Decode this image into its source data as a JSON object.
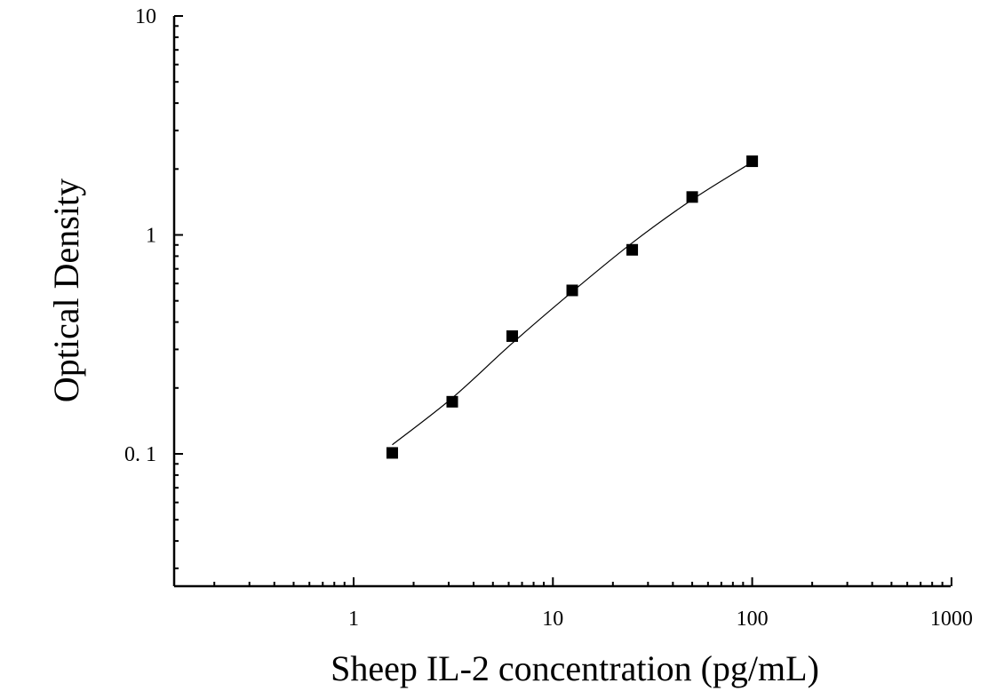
{
  "chart_data": {
    "type": "scatter",
    "title": "",
    "xlabel": "Sheep IL-2 concentration (pg/mL)",
    "ylabel": "Optical Density",
    "x_scale": "log",
    "y_scale": "log",
    "xlim": [
      0.13,
      1000
    ],
    "ylim": [
      0.025,
      10
    ],
    "x_ticks": [
      {
        "value": 1,
        "label": "1"
      },
      {
        "value": 10,
        "label": "10"
      },
      {
        "value": 100,
        "label": "100"
      },
      {
        "value": 1000,
        "label": "1000"
      }
    ],
    "y_ticks": [
      {
        "value": 0.1,
        "label": "0. 1"
      },
      {
        "value": 1,
        "label": "1"
      },
      {
        "value": 10,
        "label": "10"
      }
    ],
    "grid": false,
    "series": [
      {
        "marker": "square",
        "color": "#000000",
        "x": [
          1.5625,
          3.125,
          6.25,
          12.5,
          25,
          50,
          100
        ],
        "y": [
          0.101,
          0.173,
          0.345,
          0.558,
          0.855,
          1.49,
          2.17
        ]
      }
    ],
    "fit_curve": {
      "color": "#000000",
      "x": [
        1.5625,
        3.125,
        6.25,
        12.5,
        25,
        50,
        100
      ],
      "y": [
        0.11,
        0.18,
        0.32,
        0.55,
        0.92,
        1.45,
        2.15
      ]
    }
  }
}
